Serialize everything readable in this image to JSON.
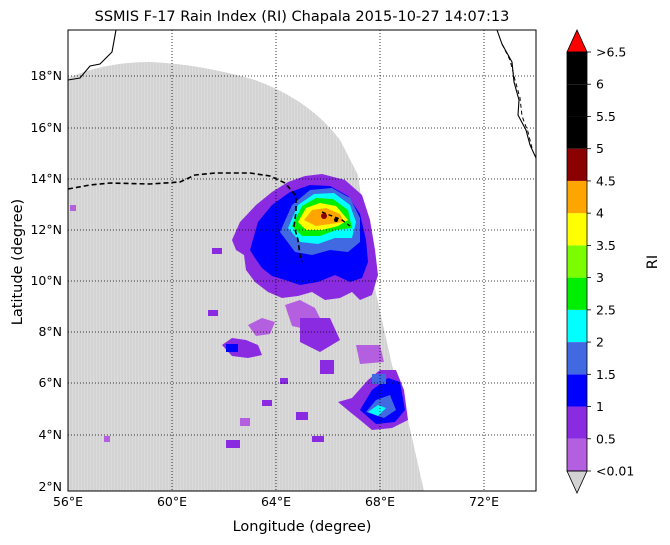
{
  "map": {
    "title": "SSMIS F-17 Rain Index (RI) Chapala 2015-10-27 14:07:13",
    "xlabel": "Longitude (degree)",
    "ylabel": "Latitude (degree)",
    "x_ticks": [
      "56°E",
      "60°E",
      "64°E",
      "68°E",
      "72°E"
    ],
    "y_ticks": [
      "2°N",
      "4°N",
      "6°N",
      "8°N",
      "10°N",
      "12°N",
      "14°N",
      "16°N",
      "18°N"
    ],
    "lon_range": [
      56,
      74
    ],
    "lat_range": [
      1.8,
      19.8
    ],
    "grid": true
  },
  "colorbar": {
    "label": "RI",
    "tick_labels": [
      "<0.01",
      "0.5",
      "1",
      "1.5",
      "2",
      "2.5",
      "3",
      "3.5",
      "4",
      "4.5",
      "5",
      "5.5",
      "6",
      ">6.5"
    ],
    "colors": [
      "#b45ee0",
      "#8a2be2",
      "#0000ff",
      "#4169e1",
      "#00ffff",
      "#00ee00",
      "#7cfc00",
      "#ffff00",
      "#ffa500",
      "#8b0000",
      "#000000",
      "#000000",
      "#000000"
    ],
    "over_color": "#ff0000",
    "under_color": "#d3d3d3"
  },
  "colors": {
    "swath": "#d3d3d3",
    "coast": "#000000"
  }
}
